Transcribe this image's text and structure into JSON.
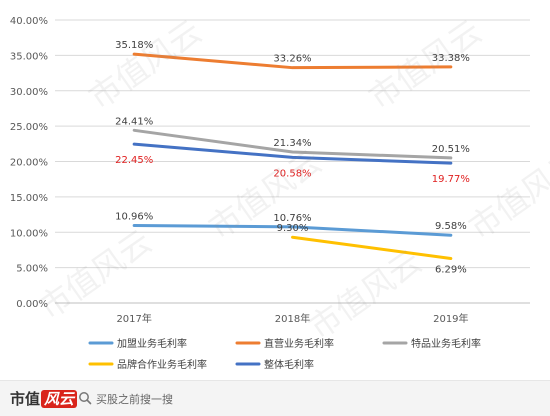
{
  "chart_data": {
    "type": "line",
    "categories": [
      "2017年",
      "2018年",
      "2019年"
    ],
    "yticks": [
      "0.00%",
      "5.00%",
      "10.00%",
      "15.00%",
      "20.00%",
      "25.00%",
      "30.00%",
      "35.00%",
      "40.00%"
    ],
    "ylim": [
      0,
      40
    ],
    "grid": true,
    "legend_position": "bottom",
    "series": [
      {
        "name": "加盟业务毛利率",
        "color": "#5b9bd5",
        "values": [
          10.96,
          10.76,
          9.58
        ],
        "labels": [
          "10.96%",
          "10.76%",
          "9.58%"
        ],
        "label_color": "#404040"
      },
      {
        "name": "直营业务毛利率",
        "color": "#ed7d31",
        "values": [
          35.18,
          33.26,
          33.38
        ],
        "labels": [
          "35.18%",
          "33.26%",
          "33.38%"
        ],
        "label_color": "#404040"
      },
      {
        "name": "特品业务毛利率",
        "color": "#a5a5a5",
        "values": [
          24.41,
          21.34,
          20.51
        ],
        "labels": [
          "24.41%",
          "21.34%",
          "20.51%"
        ],
        "label_color": "#404040"
      },
      {
        "name": "品牌合作业务毛利率",
        "color": "#ffc000",
        "values": [
          null,
          9.3,
          6.29
        ],
        "labels": [
          "",
          "9.30%",
          "6.29%"
        ],
        "label_color": "#404040"
      },
      {
        "name": "整体毛利率",
        "color": "#4472c4",
        "values": [
          22.45,
          20.58,
          19.77
        ],
        "labels": [
          "22.45%",
          "20.58%",
          "19.77%"
        ],
        "label_color": "#e02020"
      }
    ]
  },
  "footer": {
    "brand_main": "市值",
    "brand_accent": "风云",
    "search_text": "买股之前搜一搜"
  },
  "watermark_text": "市值风云"
}
